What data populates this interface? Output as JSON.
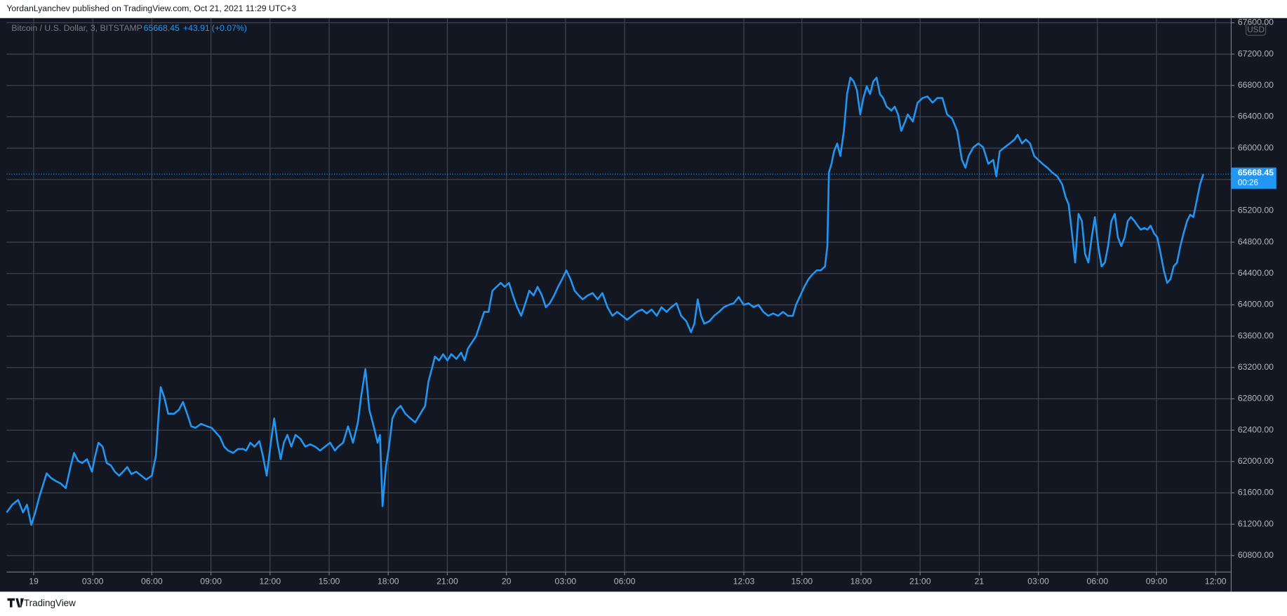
{
  "header": "YordanLyanchev published on TradingView.com, Oct 21, 2021 11:29 UTC+3",
  "footer": "TradingView",
  "chart_data": {
    "type": "line",
    "currency": "USD",
    "last_price": 65668.45,
    "change": {
      "value": 43.91,
      "label": "+43.91"
    },
    "change_percent": {
      "value": 0.07,
      "label": "(+0.07%)"
    },
    "countdown": "00:26",
    "grid": true,
    "xlim": [
      -1.375,
      60.79
    ],
    "ylim": [
      60590,
      67660
    ],
    "xticks": [
      {
        "value": 0,
        "label": "19"
      },
      {
        "value": 3,
        "label": "03:00"
      },
      {
        "value": 6,
        "label": "06:00"
      },
      {
        "value": 9,
        "label": "09:00"
      },
      {
        "value": 12,
        "label": "12:00"
      },
      {
        "value": 15,
        "label": "15:00"
      },
      {
        "value": 18,
        "label": "18:00"
      },
      {
        "value": 21,
        "label": "21:00"
      },
      {
        "value": 24,
        "label": "20"
      },
      {
        "value": 27,
        "label": "03:00"
      },
      {
        "value": 30,
        "label": "06:00"
      },
      {
        "value": 36.05,
        "label": "12:03"
      },
      {
        "value": 39,
        "label": "15:00"
      },
      {
        "value": 42,
        "label": "18:00"
      },
      {
        "value": 45,
        "label": "21:00"
      },
      {
        "value": 48,
        "label": "21"
      },
      {
        "value": 51,
        "label": "03:00"
      },
      {
        "value": 54,
        "label": "06:00"
      },
      {
        "value": 57,
        "label": "09:00"
      },
      {
        "value": 60,
        "label": "12:00"
      }
    ],
    "yticks": [
      {
        "value": 60800,
        "label": "60800.00"
      },
      {
        "value": 61200,
        "label": "61200.00"
      },
      {
        "value": 61600,
        "label": "61600.00"
      },
      {
        "value": 62000,
        "label": "62000.00"
      },
      {
        "value": 62400,
        "label": "62400.00"
      },
      {
        "value": 62800,
        "label": "62800.00"
      },
      {
        "value": 63200,
        "label": "63200.00"
      },
      {
        "value": 63600,
        "label": "63600.00"
      },
      {
        "value": 64000,
        "label": "64000.00"
      },
      {
        "value": 64400,
        "label": "64400.00"
      },
      {
        "value": 64800,
        "label": "64800.00"
      },
      {
        "value": 65200,
        "label": "65200.00"
      },
      {
        "value": 65600,
        "label": "65600.00"
      },
      {
        "value": 66000,
        "label": "66000.00"
      },
      {
        "value": 66400,
        "label": "66400.00"
      },
      {
        "value": 66800,
        "label": "66800.00"
      },
      {
        "value": 67200,
        "label": "67200.00"
      },
      {
        "value": 67600,
        "label": "67600.00"
      }
    ],
    "x": [
      -1.37,
      -1.08,
      -0.79,
      -0.54,
      -0.34,
      -0.12,
      0.08,
      0.3,
      0.5,
      0.66,
      0.88,
      1.13,
      1.37,
      1.63,
      1.87,
      2.05,
      2.25,
      2.46,
      2.71,
      2.96,
      3.13,
      3.29,
      3.5,
      3.71,
      3.92,
      4.12,
      4.34,
      4.54,
      4.75,
      4.96,
      5.21,
      5.46,
      5.71,
      6.0,
      6.21,
      6.33,
      6.45,
      6.63,
      6.83,
      7.13,
      7.37,
      7.58,
      7.79,
      8.0,
      8.21,
      8.5,
      8.8,
      9.04,
      9.25,
      9.46,
      9.67,
      9.87,
      10.13,
      10.37,
      10.63,
      10.79,
      11.0,
      11.21,
      11.46,
      11.63,
      11.83,
      12.04,
      12.21,
      12.38,
      12.54,
      12.7,
      12.88,
      13.08,
      13.29,
      13.54,
      13.79,
      14.04,
      14.29,
      14.54,
      14.79,
      15.05,
      15.29,
      15.46,
      15.71,
      15.96,
      16.21,
      16.46,
      16.62,
      16.84,
      17.04,
      17.26,
      17.46,
      17.58,
      17.71,
      17.88,
      18.04,
      18.21,
      18.42,
      18.63,
      18.87,
      19.13,
      19.37,
      19.63,
      19.87,
      20.04,
      20.21,
      20.37,
      20.58,
      20.79,
      21.0,
      21.2,
      21.46,
      21.7,
      21.88,
      22.04,
      22.25,
      22.46,
      22.67,
      22.87,
      23.09,
      23.29,
      23.5,
      23.71,
      23.91,
      24.13,
      24.33,
      24.54,
      24.75,
      24.96,
      25.16,
      25.38,
      25.58,
      25.8,
      26.0,
      26.2,
      26.42,
      26.62,
      26.83,
      27.04,
      27.25,
      27.46,
      27.67,
      27.87,
      28.13,
      28.37,
      28.63,
      28.87,
      29.13,
      29.38,
      29.62,
      29.88,
      30.12,
      30.38,
      30.62,
      30.88,
      31.12,
      31.37,
      31.63,
      31.87,
      32.13,
      32.37,
      32.63,
      32.87,
      33.13,
      33.37,
      33.54,
      33.71,
      33.88,
      34.04,
      34.3,
      34.54,
      34.79,
      35.04,
      35.29,
      35.54,
      35.79,
      36.04,
      36.29,
      36.55,
      36.79,
      37.04,
      37.29,
      37.54,
      37.79,
      38.04,
      38.29,
      38.54,
      38.7,
      38.92,
      39.12,
      39.34,
      39.54,
      39.75,
      39.96,
      40.17,
      40.29,
      40.37,
      40.5,
      40.63,
      40.79,
      40.95,
      41.13,
      41.29,
      41.46,
      41.63,
      41.79,
      41.96,
      42.12,
      42.29,
      42.46,
      42.62,
      42.79,
      42.96,
      43.12,
      43.3,
      43.54,
      43.71,
      43.88,
      44.04,
      44.21,
      44.37,
      44.63,
      44.87,
      45.13,
      45.37,
      45.63,
      45.87,
      46.13,
      46.37,
      46.62,
      46.88,
      47.12,
      47.3,
      47.46,
      47.7,
      47.96,
      48.2,
      48.46,
      48.71,
      48.87,
      49.04,
      49.29,
      49.55,
      49.79,
      49.95,
      50.17,
      50.37,
      50.58,
      50.79,
      51.0,
      51.21,
      51.46,
      51.7,
      51.96,
      52.21,
      52.38,
      52.54,
      52.71,
      52.87,
      53.04,
      53.21,
      53.37,
      53.54,
      53.71,
      53.87,
      54.04,
      54.21,
      54.38,
      54.54,
      54.71,
      54.88,
      55.04,
      55.21,
      55.38,
      55.54,
      55.7,
      55.88,
      56.04,
      56.2,
      56.38,
      56.54,
      56.7,
      56.88,
      57.04,
      57.21,
      57.37,
      57.54,
      57.71,
      57.87,
      58.04,
      58.21,
      58.37,
      58.55,
      58.71,
      58.87,
      59.04,
      59.21,
      59.38
    ],
    "series": [
      {
        "name": "Bitcoin / U.S. Dollar, 3, BITSTAMP",
        "color": "#2196f3",
        "values": [
          61350,
          61450,
          61510,
          61350,
          61450,
          61190,
          61350,
          61560,
          61720,
          61850,
          61790,
          61750,
          61720,
          61660,
          61930,
          62110,
          62010,
          61980,
          62030,
          61870,
          62080,
          62240,
          62190,
          61980,
          61950,
          61870,
          61820,
          61870,
          61930,
          61840,
          61870,
          61820,
          61770,
          61820,
          62080,
          62550,
          62950,
          62820,
          62610,
          62610,
          62660,
          62760,
          62610,
          62450,
          62430,
          62480,
          62450,
          62430,
          62370,
          62310,
          62190,
          62140,
          62110,
          62160,
          62160,
          62140,
          62240,
          62190,
          62260,
          62080,
          61820,
          62240,
          62550,
          62240,
          62030,
          62240,
          62340,
          62190,
          62340,
          62290,
          62190,
          62220,
          62190,
          62140,
          62190,
          62240,
          62140,
          62190,
          62240,
          62450,
          62240,
          62500,
          62820,
          63180,
          62660,
          62450,
          62240,
          62340,
          61430,
          61930,
          62190,
          62550,
          62660,
          62710,
          62610,
          62550,
          62500,
          62610,
          62710,
          63020,
          63180,
          63340,
          63290,
          63370,
          63290,
          63370,
          63310,
          63390,
          63290,
          63440,
          63520,
          63600,
          63760,
          63910,
          63910,
          64180,
          64230,
          64280,
          64230,
          64280,
          64120,
          63970,
          63860,
          64020,
          64180,
          64120,
          64230,
          64120,
          63970,
          64020,
          64120,
          64230,
          64330,
          64440,
          64330,
          64180,
          64120,
          64070,
          64120,
          64150,
          64070,
          64150,
          63970,
          63860,
          63910,
          63860,
          63810,
          63860,
          63910,
          63940,
          63890,
          63940,
          63860,
          63970,
          63910,
          63970,
          64020,
          63860,
          63790,
          63650,
          63760,
          64070,
          63860,
          63760,
          63790,
          63860,
          63910,
          63970,
          64000,
          64020,
          64100,
          64000,
          64020,
          63970,
          64000,
          63910,
          63860,
          63890,
          63860,
          63910,
          63860,
          63860,
          64000,
          64120,
          64230,
          64330,
          64390,
          64440,
          64440,
          64490,
          64750,
          65690,
          65800,
          65960,
          66060,
          65900,
          66220,
          66690,
          66900,
          66850,
          66740,
          66430,
          66640,
          66790,
          66690,
          66850,
          66900,
          66690,
          66640,
          66530,
          66480,
          66530,
          66430,
          66220,
          66320,
          66430,
          66340,
          66580,
          66640,
          66660,
          66580,
          66640,
          66640,
          66430,
          66380,
          66220,
          65850,
          65750,
          65900,
          66010,
          66060,
          66010,
          65800,
          65850,
          65640,
          65960,
          66010,
          66060,
          66110,
          66170,
          66060,
          66110,
          66060,
          65900,
          65850,
          65800,
          65750,
          65690,
          65640,
          65540,
          65380,
          65280,
          64910,
          64540,
          65160,
          65070,
          64650,
          64540,
          64860,
          65120,
          64750,
          64490,
          64540,
          64750,
          65070,
          65160,
          64860,
          64750,
          64860,
          65070,
          65120,
          65070,
          65010,
          64960,
          64980,
          64960,
          65010,
          64910,
          64860,
          64650,
          64440,
          64280,
          64330,
          64490,
          64540,
          64750,
          64910,
          65070,
          65150,
          65120,
          65330,
          65540,
          65668.45
        ]
      }
    ]
  }
}
